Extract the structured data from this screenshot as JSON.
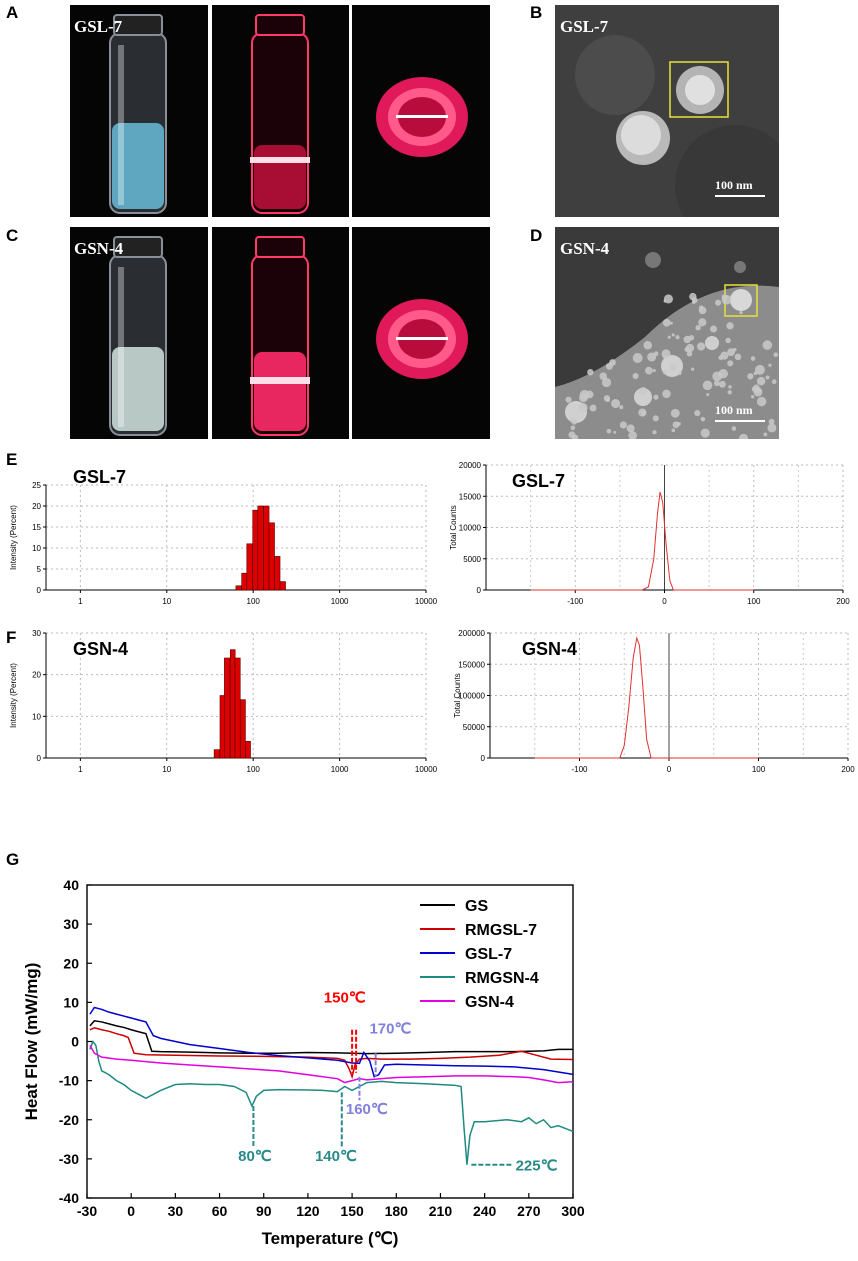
{
  "panels": {
    "A": {
      "label": "A",
      "sample": "GSL-7"
    },
    "B": {
      "label": "B",
      "sample": "GSL-7",
      "scale": "100 nm"
    },
    "C": {
      "label": "C",
      "sample": "GSN-4"
    },
    "D": {
      "label": "D",
      "sample": "GSN-4",
      "scale": "100 nm"
    },
    "E": {
      "label": "E"
    },
    "F": {
      "label": "F"
    },
    "G": {
      "label": "G"
    }
  },
  "colors": {
    "laser": "#ff2050",
    "bar": "#dd0000",
    "box": "#e8e23a"
  },
  "chart_data": [
    {
      "id": "E-size",
      "type": "bar",
      "sample": "GSL-7",
      "xlabel": "Size (d.nm)",
      "ylabel": "Intensity (Percent)",
      "xscale": "log",
      "xlim": [
        0.4,
        10000
      ],
      "ylim": [
        0,
        25
      ],
      "xticks": [
        "1",
        "10",
        "100",
        "1000",
        "10000"
      ],
      "yticks": [
        "0",
        "5",
        "10",
        "15",
        "20",
        "25"
      ],
      "x": [
        68,
        79,
        91,
        106,
        122,
        142,
        164,
        190,
        220
      ],
      "values": [
        1,
        4,
        11,
        19,
        20,
        20,
        16,
        8,
        2
      ]
    },
    {
      "id": "E-zeta",
      "type": "line",
      "sample": "GSL-7",
      "xlabel": "Apparent Zeta Potential (mV)",
      "ylabel": "Total Counts",
      "xlim": [
        -200,
        200
      ],
      "ylim": [
        0,
        20000
      ],
      "xticks": [
        "-100",
        "0",
        "100",
        "200"
      ],
      "yticks": [
        "0",
        "5000",
        "10000",
        "15000",
        "20000"
      ],
      "x": [
        -150,
        -25,
        -18,
        -12,
        -8,
        -5,
        -2,
        2,
        6,
        10,
        15,
        100
      ],
      "y": [
        0,
        0,
        500,
        5000,
        12000,
        15700,
        14000,
        7000,
        1500,
        0,
        0,
        0
      ]
    },
    {
      "id": "F-size",
      "type": "bar",
      "sample": "GSN-4",
      "xlabel": "Size (d.nm)",
      "ylabel": "Intensity (Percent)",
      "xscale": "log",
      "xlim": [
        0.4,
        10000
      ],
      "ylim": [
        0,
        30
      ],
      "xticks": [
        "1",
        "10",
        "100",
        "1000",
        "10000"
      ],
      "yticks": [
        "0",
        "10",
        "20",
        "30"
      ],
      "x": [
        38,
        44,
        50,
        58,
        66,
        76,
        87
      ],
      "values": [
        2,
        15,
        24,
        26,
        24,
        14,
        4
      ]
    },
    {
      "id": "F-zeta",
      "type": "line",
      "sample": "GSN-4",
      "xlabel": "Apparent Zeta Potential (mV)",
      "ylabel": "Total Counts",
      "xlim": [
        -200,
        200
      ],
      "ylim": [
        0,
        200000
      ],
      "xticks": [
        "-100",
        "0",
        "100",
        "200"
      ],
      "yticks": [
        "0",
        "50000",
        "100000",
        "150000",
        "200000"
      ],
      "x": [
        -150,
        -55,
        -50,
        -45,
        -40,
        -36,
        -33,
        -29,
        -25,
        -20,
        -15,
        100
      ],
      "y": [
        0,
        0,
        20000,
        80000,
        160000,
        192000,
        180000,
        110000,
        30000,
        0,
        0,
        0
      ]
    },
    {
      "id": "G-dsc",
      "type": "line",
      "xlabel": "Temperature (℃)",
      "ylabel": "Heat Flow (mW/mg)",
      "xlim": [
        -30,
        300
      ],
      "ylim": [
        -40,
        40
      ],
      "xticks": [
        "-30",
        "0",
        "30",
        "60",
        "90",
        "120",
        "150",
        "180",
        "210",
        "240",
        "270",
        "300"
      ],
      "yticks": [
        "40",
        "30",
        "20",
        "10",
        "0",
        "-10",
        "-20",
        "-30",
        "-40"
      ],
      "series": [
        {
          "name": "GS",
          "color": "#000000",
          "x": [
            -28,
            -25,
            -20,
            -15,
            -10,
            -5,
            0,
            5,
            10,
            14,
            20,
            40,
            60,
            80,
            100,
            120,
            140,
            160,
            180,
            200,
            220,
            240,
            260,
            280,
            290,
            300
          ],
          "y": [
            4,
            5.3,
            5,
            4.5,
            4,
            3.6,
            3,
            2.5,
            2,
            -2.5,
            -2.6,
            -2.7,
            -2.9,
            -3,
            -3,
            -2.8,
            -2.9,
            -3.1,
            -3,
            -2.8,
            -2.6,
            -2.6,
            -2.6,
            -2.4,
            -2,
            -2
          ]
        },
        {
          "name": "RMGSL-7",
          "color": "#cc0000",
          "x": [
            -28,
            -25,
            -20,
            -15,
            -10,
            -5,
            -2,
            2,
            10,
            30,
            60,
            90,
            120,
            140,
            145,
            148,
            150,
            152,
            155,
            160,
            170,
            190,
            210,
            230,
            250,
            265,
            275,
            285,
            300
          ],
          "y": [
            3,
            3.5,
            3,
            2.6,
            2,
            1.5,
            1,
            -3,
            -3.4,
            -3.5,
            -3.7,
            -3.8,
            -4,
            -4.3,
            -4.8,
            -7,
            -9,
            -6,
            -4.5,
            -4.3,
            -4.5,
            -4.5,
            -4.3,
            -4,
            -3.5,
            -2.5,
            -3.5,
            -4.5,
            -4.6
          ]
        },
        {
          "name": "GSL-7",
          "color": "#0000cc",
          "x": [
            -28,
            -25,
            -20,
            -15,
            -10,
            -5,
            0,
            5,
            10,
            15,
            20,
            40,
            60,
            80,
            100,
            120,
            140,
            150,
            155,
            158,
            162,
            165,
            168,
            172,
            180,
            200,
            220,
            240,
            260,
            280,
            290,
            300
          ],
          "y": [
            7,
            8.7,
            8.2,
            7.5,
            7,
            6.5,
            6,
            5.5,
            5,
            1.5,
            0.8,
            -0.8,
            -1.8,
            -2.8,
            -3.6,
            -4.2,
            -4.8,
            -5.5,
            -5.6,
            -2.8,
            -5,
            -9,
            -8.5,
            -6,
            -5.8,
            -6,
            -6.2,
            -6.3,
            -6.5,
            -7.2,
            -7.8,
            -8.4
          ]
        },
        {
          "name": "RMGSN-4",
          "color": "#1e8a80",
          "x": [
            -28,
            -26,
            -24,
            -22,
            -20,
            -15,
            -10,
            -5,
            0,
            5,
            10,
            20,
            30,
            40,
            50,
            60,
            70,
            78,
            82,
            85,
            90,
            100,
            120,
            130,
            140,
            145,
            150,
            160,
            170,
            180,
            200,
            220,
            224,
            226,
            228,
            230,
            233,
            240,
            255,
            265,
            270,
            275,
            280,
            285,
            290,
            300
          ],
          "y": [
            -2,
            0,
            -1,
            -5,
            -7.5,
            -8.5,
            -10,
            -11,
            -12.5,
            -13.5,
            -14.5,
            -12.5,
            -11,
            -10.8,
            -11,
            -11,
            -11.5,
            -13,
            -16.5,
            -14,
            -12.5,
            -12.3,
            -12.4,
            -12.5,
            -12.8,
            -11.5,
            -12.5,
            -10.5,
            -10.2,
            -10.5,
            -10.8,
            -11.2,
            -11.5,
            -22,
            -31.5,
            -24,
            -20.5,
            -20.5,
            -20,
            -20.5,
            -19.5,
            -21,
            -20,
            -22,
            -21.5,
            -23
          ]
        },
        {
          "name": "GSN-4",
          "color": "#e000e0",
          "x": [
            -28,
            -25,
            -20,
            -10,
            0,
            20,
            40,
            60,
            80,
            100,
            120,
            140,
            145,
            150,
            155,
            160,
            170,
            180,
            200,
            220,
            240,
            260,
            270,
            280,
            290,
            300
          ],
          "y": [
            -1,
            -3,
            -4,
            -4.5,
            -4.8,
            -5.5,
            -6,
            -6.5,
            -7,
            -7.5,
            -8.5,
            -9.5,
            -10.5,
            -10,
            -9.5,
            -9.8,
            -9.5,
            -9.2,
            -9,
            -8.8,
            -8.8,
            -9,
            -9.2,
            -9.8,
            -10.5,
            -10.3
          ]
        }
      ],
      "annotations": [
        {
          "text": "150℃",
          "x": 150,
          "color": "#ff0000"
        },
        {
          "text": "170℃",
          "x": 170,
          "color": "#8080dd"
        },
        {
          "text": "160℃",
          "x": 160,
          "color": "#8080dd"
        },
        {
          "text": "80℃",
          "x": 80,
          "color": "#2a8a8a"
        },
        {
          "text": "140℃",
          "x": 140,
          "color": "#2a8a8a"
        },
        {
          "text": "225℃",
          "x": 225,
          "color": "#2a8a8a"
        }
      ]
    }
  ]
}
